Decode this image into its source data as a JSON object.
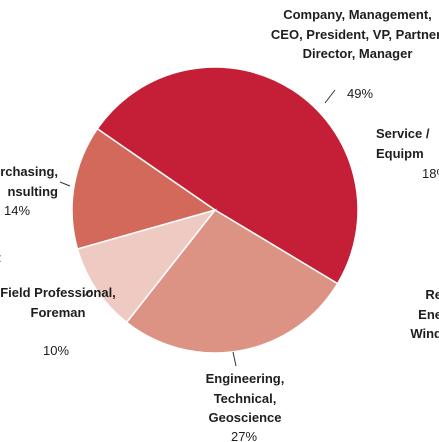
{
  "chart_data": {
    "type": "pie",
    "categories": [
      "Company, Management, CEO, President, VP, Partner, Director, Manager",
      "Engineering, Technical, Geoscience",
      "Field Professional, Foreman",
      "rchasing, nsulting"
    ],
    "values": [
      49,
      27,
      10,
      14
    ],
    "value_labels": [
      "49%",
      "27%",
      "10%",
      "14%"
    ],
    "colors": [
      "#c41f37",
      "#dd9384",
      "#efcac3",
      "#d2695b"
    ],
    "annotations": [
      "Service / Equipm",
      "18%",
      "Re Ene Wind",
      ":"
    ]
  }
}
